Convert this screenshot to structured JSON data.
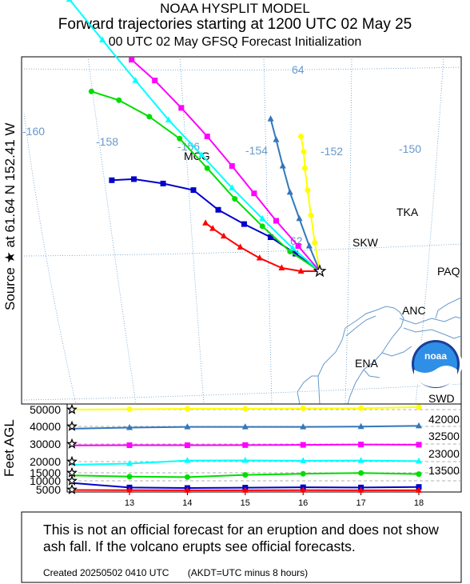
{
  "header": {
    "model_title": "NOAA HYSPLIT MODEL",
    "main_title": "Forward trajectories starting at 1200 UTC 02 May 25",
    "sub_title": "00 UTC 02 May    GFSQ  Forecast Initialization"
  },
  "source_label": "Source ★ at  61.64 N  152.41 W",
  "map": {
    "longitude_labels": [
      "-160",
      "-158",
      "-156",
      "-154",
      "-152",
      "-150"
    ],
    "latitude_labels": [
      "64",
      "62"
    ],
    "stations": [
      "MCG",
      "TKA",
      "SKW",
      "PAQ",
      "ANC",
      "ENA",
      "SWD"
    ],
    "logo_text": "noaa",
    "graticule_color": "#6699cc",
    "coast_color": "#6699cc"
  },
  "chart_data": [
    {
      "type": "line",
      "name": "trajectory map",
      "source": {
        "lat": 61.64,
        "lon": -152.41
      },
      "series": [
        {
          "color": "#ff0000",
          "marker": "triangle",
          "points": [
            [
              -152.41,
              61.64
            ],
            [
              -152.75,
              61.64
            ],
            [
              -153.1,
              61.67
            ],
            [
              -153.5,
              61.76
            ],
            [
              -153.85,
              61.86
            ],
            [
              -154.15,
              61.96
            ],
            [
              -154.35,
              62.03
            ],
            [
              -154.48,
              62.08
            ]
          ]
        },
        {
          "color": "#0000cc",
          "marker": "square",
          "points": [
            [
              -152.41,
              61.64
            ],
            [
              -152.85,
              61.8
            ],
            [
              -153.3,
              61.95
            ],
            [
              -153.78,
              62.07
            ],
            [
              -154.25,
              62.2
            ],
            [
              -154.7,
              62.38
            ],
            [
              -155.25,
              62.44
            ],
            [
              -155.78,
              62.48
            ],
            [
              -156.18,
              62.47
            ]
          ]
        },
        {
          "color": "#00dd00",
          "marker": "circle",
          "points": [
            [
              -152.41,
              61.64
            ],
            [
              -152.95,
              61.82
            ],
            [
              -153.45,
              62.05
            ],
            [
              -153.95,
              62.3
            ],
            [
              -154.45,
              62.58
            ],
            [
              -154.95,
              62.85
            ],
            [
              -155.5,
              63.05
            ],
            [
              -156.05,
              63.2
            ],
            [
              -156.55,
              63.28
            ]
          ]
        },
        {
          "color": "#00ffff",
          "marker": "triangle",
          "points": [
            [
              -152.41,
              61.64
            ],
            [
              -152.9,
              61.85
            ],
            [
              -153.45,
              62.12
            ],
            [
              -154.0,
              62.4
            ],
            [
              -154.55,
              62.7
            ],
            [
              -155.15,
              63.02
            ],
            [
              -155.75,
              63.38
            ],
            [
              -156.35,
              63.75
            ],
            [
              -156.95,
              64.12
            ],
            [
              -157.55,
              64.5
            ],
            [
              -158.1,
              64.82
            ]
          ]
        },
        {
          "color": "#ff00ff",
          "marker": "square",
          "points": [
            [
              -152.41,
              61.64
            ],
            [
              -152.8,
              61.87
            ],
            [
              -153.2,
              62.1
            ],
            [
              -153.6,
              62.35
            ],
            [
              -154.0,
              62.6
            ],
            [
              -154.45,
              62.87
            ],
            [
              -154.92,
              63.13
            ],
            [
              -155.4,
              63.38
            ],
            [
              -155.82,
              63.57
            ]
          ]
        },
        {
          "color": "#3377bb",
          "marker": "triangle",
          "points": [
            [
              -152.41,
              61.64
            ],
            [
              -152.6,
              61.87
            ],
            [
              -152.78,
              62.12
            ],
            [
              -152.95,
              62.36
            ],
            [
              -153.08,
              62.6
            ],
            [
              -153.2,
              62.84
            ],
            [
              -153.3,
              63.03
            ]
          ]
        },
        {
          "color": "#ffff00",
          "marker": "circle",
          "points": [
            [
              -152.41,
              61.64
            ],
            [
              -152.5,
              61.9
            ],
            [
              -152.57,
              62.15
            ],
            [
              -152.63,
              62.38
            ],
            [
              -152.68,
              62.58
            ],
            [
              -152.7,
              62.73
            ],
            [
              -152.75,
              62.87
            ]
          ]
        }
      ]
    },
    {
      "type": "line",
      "name": "height profile",
      "ylabel": "Feet AGL",
      "x": [
        12.5,
        13,
        14,
        15,
        16,
        17,
        18
      ],
      "x_ticks": [
        "13",
        "14",
        "15",
        "16",
        "17",
        "18"
      ],
      "y_ticks": [
        "50000",
        "40000",
        "30000",
        "20000",
        "15000",
        "10000",
        "5000"
      ],
      "right_labels": [
        "42000",
        "32500",
        "23000",
        "13500"
      ],
      "series": [
        {
          "color": "#ffff00",
          "marker": "circle",
          "start": 50000,
          "values": [
            50000,
            50200,
            50500,
            50500,
            50700,
            50800,
            51500
          ]
        },
        {
          "color": "#3377bb",
          "marker": "triangle",
          "start": 40000,
          "values": [
            38700,
            39300,
            39700,
            39700,
            39700,
            39900,
            40300
          ]
        },
        {
          "color": "#ff00ff",
          "marker": "square",
          "start": 30000,
          "values": [
            29200,
            29300,
            29300,
            29400,
            29500,
            29700,
            29600
          ]
        },
        {
          "color": "#00ffff",
          "marker": "triangle",
          "start": 20000,
          "values": [
            18600,
            19100,
            20600,
            20700,
            20500,
            20600,
            20300
          ]
        },
        {
          "color": "#00dd00",
          "marker": "circle",
          "start": 15000,
          "values": [
            13400,
            12600,
            12300,
            13700,
            14400,
            14900,
            14200
          ]
        },
        {
          "color": "#0000cc",
          "marker": "square",
          "start": 10000,
          "values": [
            8800,
            6200,
            5900,
            6100,
            6300,
            6200,
            6500
          ]
        },
        {
          "color": "#ff0000",
          "marker": "triangle",
          "start": 5000,
          "values": [
            4400,
            4000,
            3900,
            3900,
            4000,
            3900,
            3900
          ]
        }
      ]
    }
  ],
  "disclaimer": "This is not an official forecast for an eruption and does not show ash fall. If the volcano erupts see official forecasts.",
  "footer": "Created 20250502 0410 UTC       (AKDT=UTC minus 8 hours)"
}
